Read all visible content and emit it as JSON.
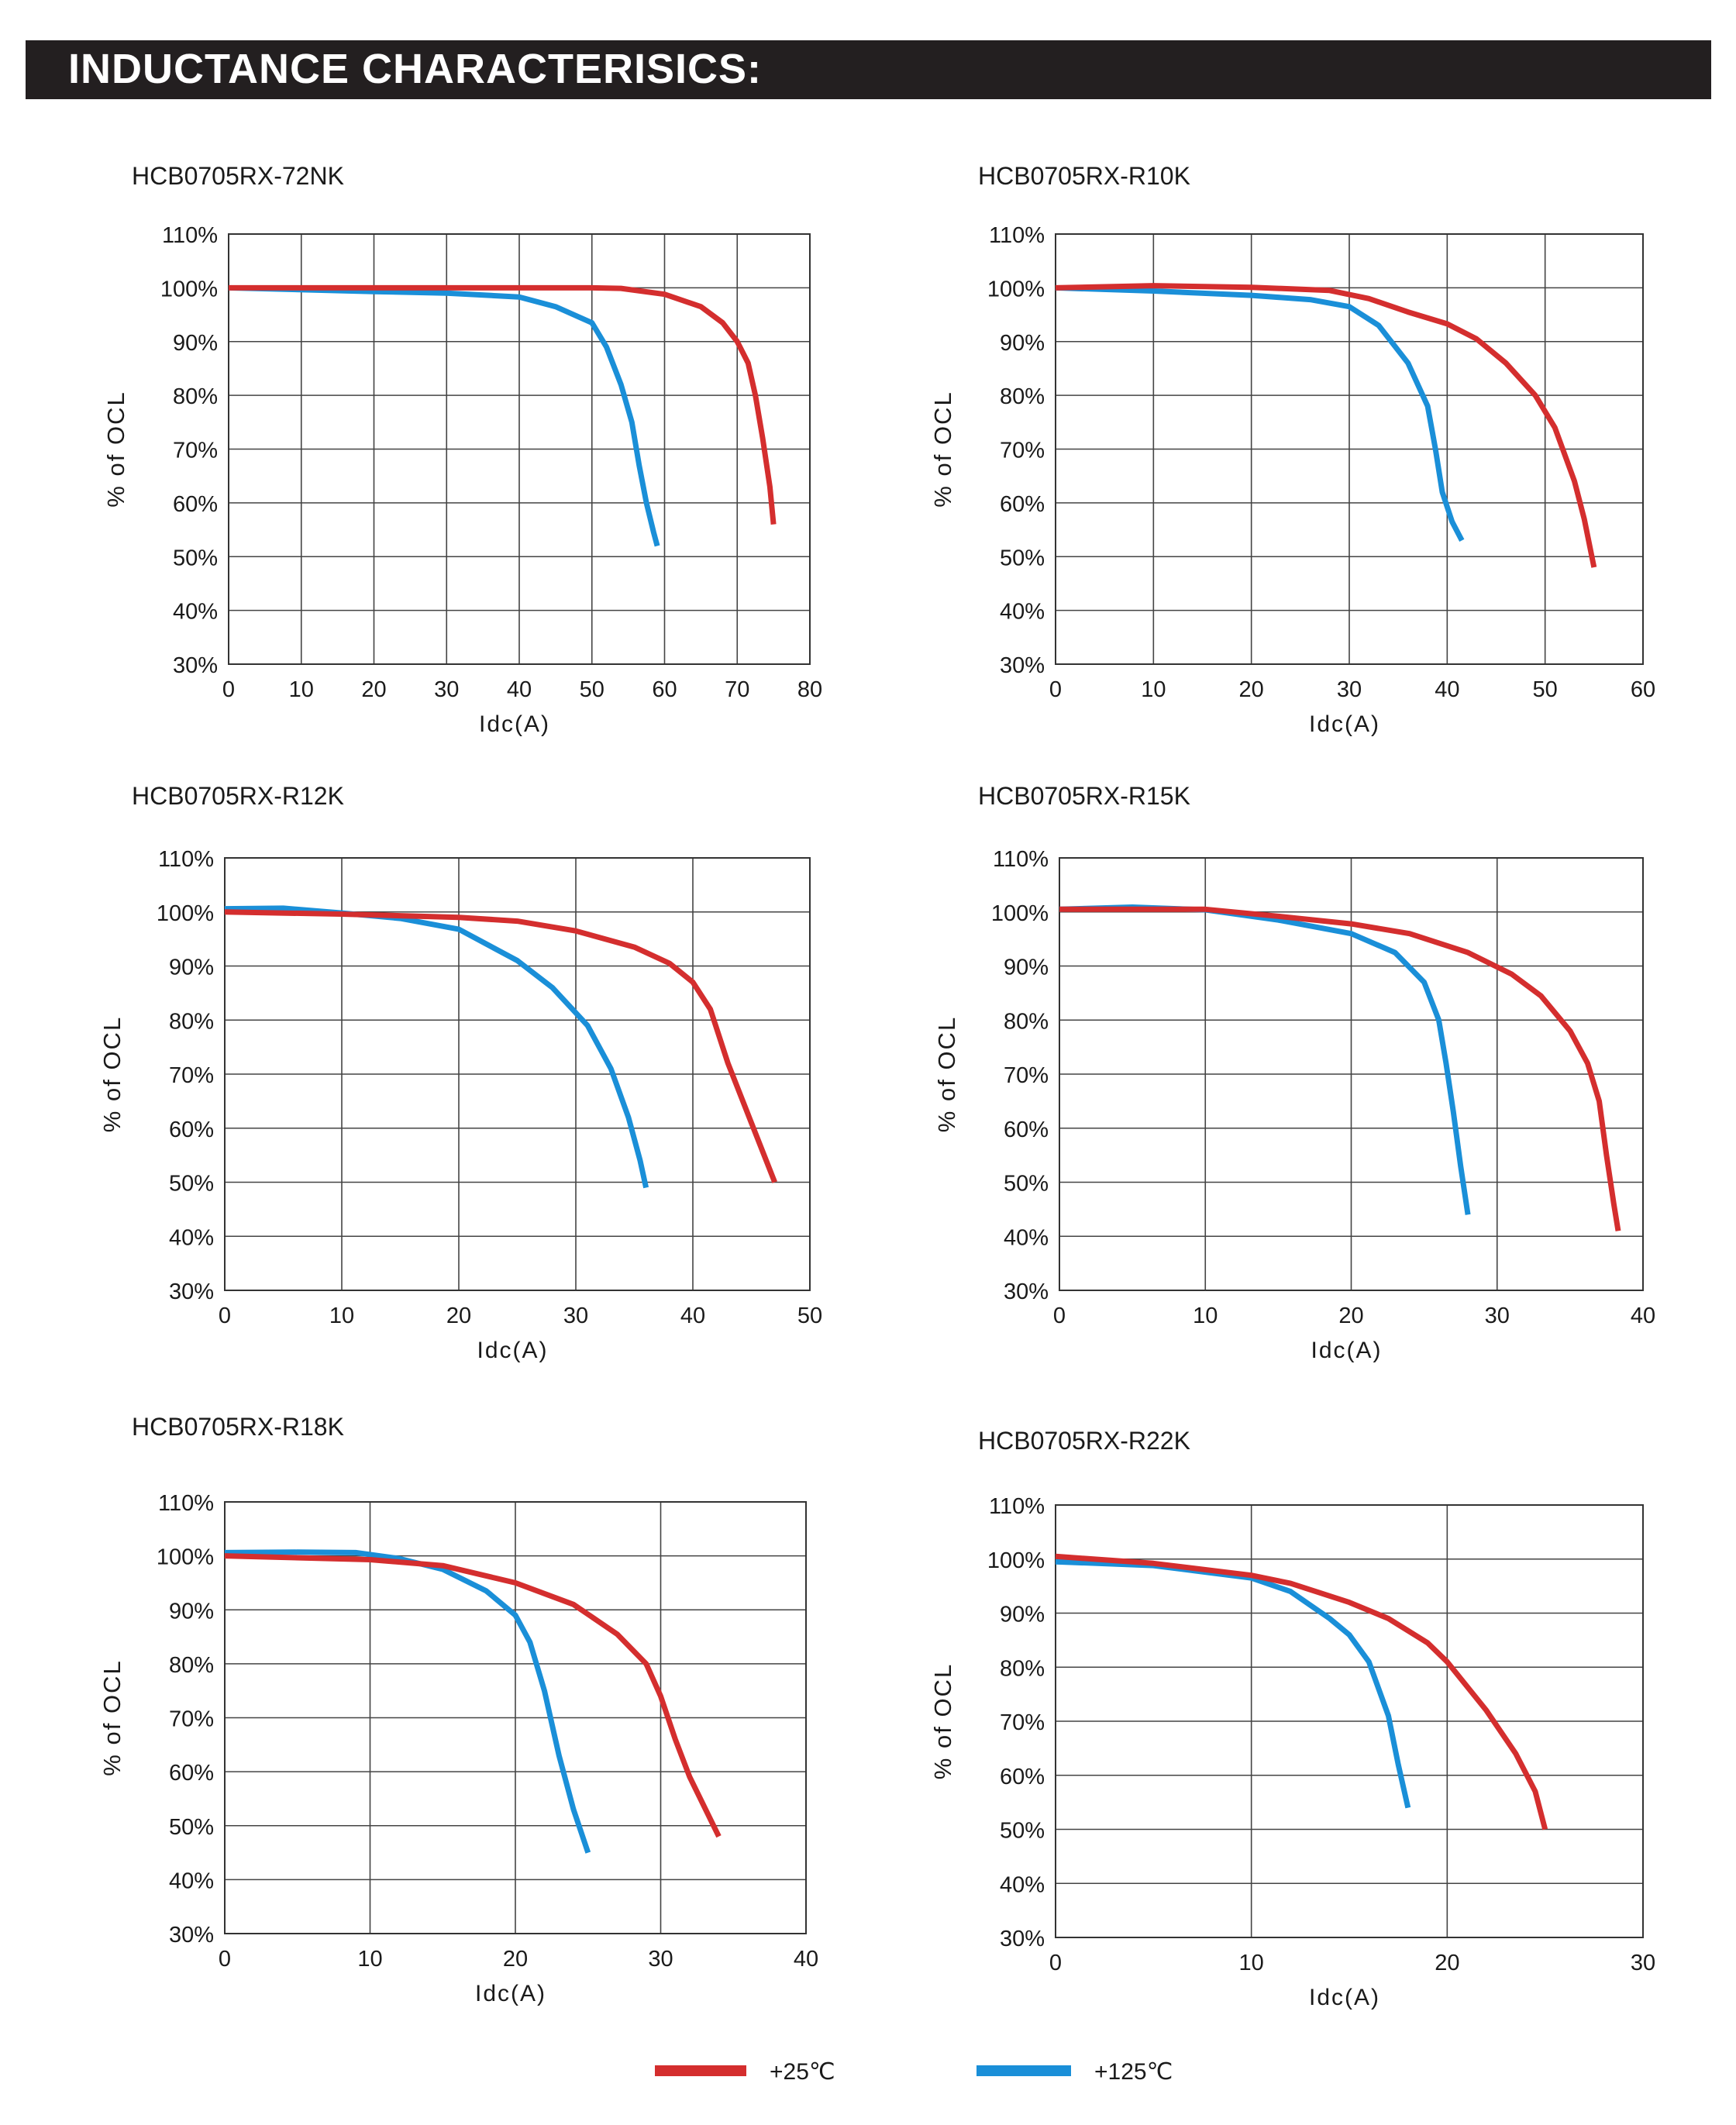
{
  "header": {
    "title": "INDUCTANCE CHARACTERISICS:"
  },
  "legend": [
    {
      "label": "+25℃",
      "color": "#d42e2e"
    },
    {
      "label": "+125℃",
      "color": "#1a8fd8"
    }
  ],
  "colors": {
    "series_25": "#d42e2e",
    "series_125": "#1a8fd8",
    "grid": "#444444",
    "header_bg": "#231f20"
  },
  "chart_data": [
    {
      "type": "line",
      "title": "HCB0705RX-72NK",
      "xlabel": "Idc(A)",
      "ylabel": "% of OCL",
      "xlim": [
        0,
        80
      ],
      "ylim": [
        30,
        110
      ],
      "xticks": [
        0,
        10,
        20,
        30,
        40,
        50,
        60,
        70,
        80
      ],
      "yticks": [
        30,
        40,
        50,
        60,
        70,
        80,
        90,
        100,
        110
      ],
      "grid": true,
      "series": [
        {
          "name": "+25℃",
          "color": "#d42e2e",
          "points": [
            [
              0,
              100
            ],
            [
              20,
              100
            ],
            [
              40,
              100
            ],
            [
              50,
              100
            ],
            [
              54,
              99.9
            ],
            [
              60,
              98.8
            ],
            [
              65,
              96.5
            ],
            [
              68,
              93.5
            ],
            [
              70,
              90
            ],
            [
              71.5,
              86
            ],
            [
              72.5,
              80
            ],
            [
              73.5,
              72
            ],
            [
              74.5,
              63
            ],
            [
              75,
              56
            ]
          ]
        },
        {
          "name": "+125℃",
          "color": "#1a8fd8",
          "points": [
            [
              0,
              100
            ],
            [
              20,
              99.3
            ],
            [
              30,
              99
            ],
            [
              40,
              98.3
            ],
            [
              45,
              96.5
            ],
            [
              50,
              93.5
            ],
            [
              52,
              89
            ],
            [
              54,
              82
            ],
            [
              55.5,
              75
            ],
            [
              56.5,
              67
            ],
            [
              57.5,
              60
            ],
            [
              58.5,
              54.5
            ],
            [
              59,
              52
            ]
          ]
        }
      ]
    },
    {
      "type": "line",
      "title": "HCB0705RX-R10K",
      "xlabel": "Idc(A)",
      "ylabel": "% of OCL",
      "xlim": [
        0,
        60
      ],
      "ylim": [
        30,
        110
      ],
      "xticks": [
        0,
        10,
        20,
        30,
        40,
        50,
        60
      ],
      "yticks": [
        30,
        40,
        50,
        60,
        70,
        80,
        90,
        100,
        110
      ],
      "grid": true,
      "series": [
        {
          "name": "+25℃",
          "color": "#d42e2e",
          "points": [
            [
              0,
              100
            ],
            [
              10,
              100.4
            ],
            [
              20,
              100.1
            ],
            [
              28,
              99.5
            ],
            [
              32,
              98
            ],
            [
              36,
              95.5
            ],
            [
              40,
              93.3
            ],
            [
              43,
              90.5
            ],
            [
              46,
              86
            ],
            [
              49,
              80
            ],
            [
              51,
              74
            ],
            [
              53,
              64
            ],
            [
              54,
              57
            ],
            [
              55,
              48
            ]
          ]
        },
        {
          "name": "+125℃",
          "color": "#1a8fd8",
          "points": [
            [
              0,
              100
            ],
            [
              10,
              99.4
            ],
            [
              20,
              98.6
            ],
            [
              26,
              97.8
            ],
            [
              30,
              96.5
            ],
            [
              33,
              93
            ],
            [
              36,
              86
            ],
            [
              38,
              78
            ],
            [
              38.8,
              70
            ],
            [
              39.5,
              62
            ],
            [
              40.5,
              56.5
            ],
            [
              41.5,
              53
            ]
          ]
        }
      ]
    },
    {
      "type": "line",
      "title": "HCB0705RX-R12K",
      "xlabel": "Idc(A)",
      "ylabel": "% of OCL",
      "xlim": [
        0,
        50
      ],
      "ylim": [
        30,
        110
      ],
      "xticks": [
        0,
        10,
        20,
        30,
        40,
        50
      ],
      "yticks": [
        30,
        40,
        50,
        60,
        70,
        80,
        90,
        100,
        110
      ],
      "grid": true,
      "series": [
        {
          "name": "+25℃",
          "color": "#d42e2e",
          "points": [
            [
              0,
              100
            ],
            [
              10,
              99.6
            ],
            [
              20,
              99
            ],
            [
              25,
              98.3
            ],
            [
              30,
              96.5
            ],
            [
              35,
              93.5
            ],
            [
              38,
              90.5
            ],
            [
              40,
              87
            ],
            [
              41.5,
              82
            ],
            [
              43,
              72
            ],
            [
              45,
              61
            ],
            [
              47,
              50
            ]
          ]
        },
        {
          "name": "+125℃",
          "color": "#1a8fd8",
          "points": [
            [
              0,
              100.6
            ],
            [
              5,
              100.7
            ],
            [
              10,
              99.8
            ],
            [
              15,
              98.8
            ],
            [
              20,
              96.8
            ],
            [
              25,
              91
            ],
            [
              28,
              86
            ],
            [
              31,
              79
            ],
            [
              33,
              71
            ],
            [
              34.5,
              62
            ],
            [
              35.5,
              54
            ],
            [
              36,
              49
            ]
          ]
        }
      ]
    },
    {
      "type": "line",
      "title": "HCB0705RX-R15K",
      "xlabel": "Idc(A)",
      "ylabel": "% of OCL",
      "xlim": [
        0,
        40
      ],
      "ylim": [
        30,
        110
      ],
      "xticks": [
        0,
        10,
        20,
        30,
        40
      ],
      "yticks": [
        30,
        40,
        50,
        60,
        70,
        80,
        90,
        100,
        110
      ],
      "grid": true,
      "series": [
        {
          "name": "+25℃",
          "color": "#d42e2e",
          "points": [
            [
              0,
              100.5
            ],
            [
              10,
              100.5
            ],
            [
              15,
              99.2
            ],
            [
              20,
              97.8
            ],
            [
              24,
              96
            ],
            [
              28,
              92.5
            ],
            [
              31,
              88.5
            ],
            [
              33,
              84.5
            ],
            [
              35,
              78
            ],
            [
              36.2,
              72
            ],
            [
              37,
              65
            ],
            [
              37.5,
              55
            ],
            [
              38,
              46
            ],
            [
              38.3,
              41
            ]
          ]
        },
        {
          "name": "+125℃",
          "color": "#1a8fd8",
          "points": [
            [
              0,
              100.5
            ],
            [
              5,
              100.9
            ],
            [
              10,
              100.4
            ],
            [
              15,
              98.5
            ],
            [
              20,
              96
            ],
            [
              23,
              92.5
            ],
            [
              25,
              87
            ],
            [
              26,
              80
            ],
            [
              26.5,
              72
            ],
            [
              27,
              63
            ],
            [
              27.5,
              53
            ],
            [
              28,
              44
            ]
          ]
        }
      ]
    },
    {
      "type": "line",
      "title": "HCB0705RX-R18K",
      "xlabel": "Idc(A)",
      "ylabel": "% of OCL",
      "xlim": [
        0,
        40
      ],
      "ylim": [
        30,
        110
      ],
      "xticks": [
        0,
        10,
        20,
        30,
        40
      ],
      "yticks": [
        30,
        40,
        50,
        60,
        70,
        80,
        90,
        100,
        110
      ],
      "grid": true,
      "series": [
        {
          "name": "+25℃",
          "color": "#d42e2e",
          "points": [
            [
              0,
              100
            ],
            [
              10,
              99.3
            ],
            [
              15,
              98.2
            ],
            [
              20,
              95
            ],
            [
              24,
              91
            ],
            [
              27,
              85.5
            ],
            [
              29,
              80
            ],
            [
              30,
              74
            ],
            [
              31,
              66
            ],
            [
              32,
              59
            ],
            [
              34,
              48
            ]
          ]
        },
        {
          "name": "+125℃",
          "color": "#1a8fd8",
          "points": [
            [
              0,
              100.6
            ],
            [
              5,
              100.7
            ],
            [
              9,
              100.6
            ],
            [
              12,
              99.5
            ],
            [
              15,
              97.5
            ],
            [
              18,
              93.5
            ],
            [
              20,
              89
            ],
            [
              21,
              84
            ],
            [
              22,
              75
            ],
            [
              23,
              63
            ],
            [
              24,
              53
            ],
            [
              25,
              45
            ]
          ]
        }
      ]
    },
    {
      "type": "line",
      "title": "HCB0705RX-R22K",
      "xlabel": "Idc(A)",
      "ylabel": "% of OCL",
      "xlim": [
        0,
        30
      ],
      "ylim": [
        30,
        110
      ],
      "xticks": [
        0,
        10,
        20,
        30
      ],
      "yticks": [
        30,
        40,
        50,
        60,
        70,
        80,
        90,
        100,
        110
      ],
      "grid": true,
      "series": [
        {
          "name": "+25℃",
          "color": "#d42e2e",
          "points": [
            [
              0,
              100.5
            ],
            [
              5,
              99.2
            ],
            [
              10,
              97
            ],
            [
              12,
              95.5
            ],
            [
              15,
              92
            ],
            [
              17,
              89
            ],
            [
              19,
              84.5
            ],
            [
              20,
              81
            ],
            [
              22,
              72
            ],
            [
              23.5,
              64
            ],
            [
              24.5,
              57
            ],
            [
              25,
              50
            ]
          ]
        },
        {
          "name": "+125℃",
          "color": "#1a8fd8",
          "points": [
            [
              0,
              99.5
            ],
            [
              5,
              98.8
            ],
            [
              10,
              96.5
            ],
            [
              12,
              94
            ],
            [
              14,
              89
            ],
            [
              15,
              86
            ],
            [
              16,
              81
            ],
            [
              17,
              71
            ],
            [
              17.5,
              62
            ],
            [
              18,
              54
            ]
          ]
        }
      ]
    }
  ]
}
